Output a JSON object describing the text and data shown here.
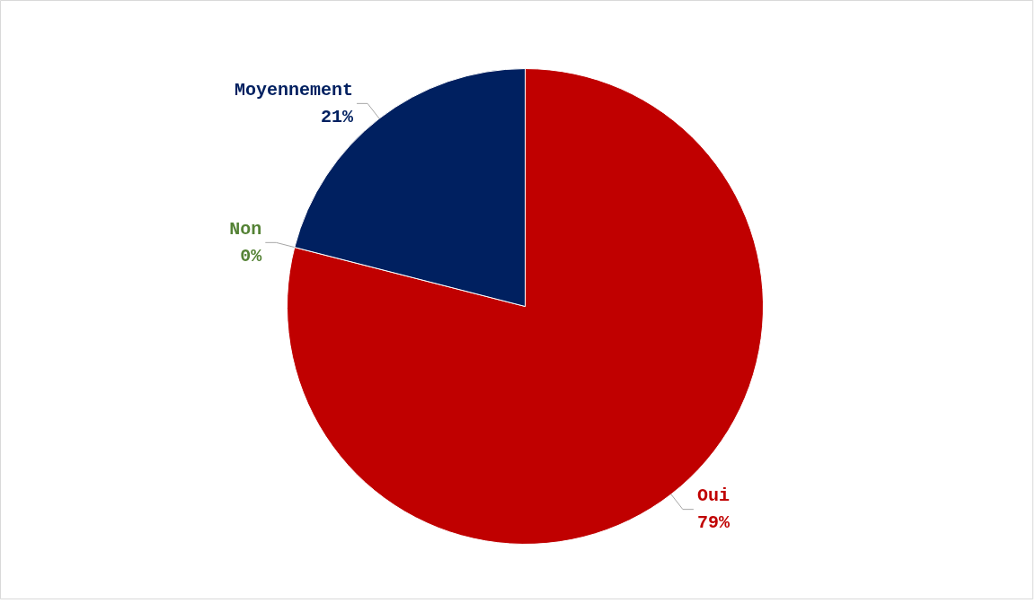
{
  "chart_data": {
    "type": "pie",
    "categories": [
      "Oui",
      "Non",
      "Moyennement"
    ],
    "values": [
      79,
      0,
      21
    ],
    "value_labels": [
      "79%",
      "0%",
      "21%"
    ],
    "colors": [
      "#c00000",
      "#548235",
      "#002060"
    ]
  }
}
